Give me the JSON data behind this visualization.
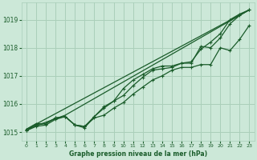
{
  "xlabel": "Graphe pression niveau de la mer (hPa)",
  "background_color": "#cce8d8",
  "grid_color": "#aacfba",
  "line_color": "#1a5c2a",
  "xlim": [
    -0.5,
    23.5
  ],
  "ylim": [
    1014.7,
    1019.6
  ],
  "yticks": [
    1015,
    1016,
    1017,
    1018,
    1019
  ],
  "xticks": [
    0,
    1,
    2,
    3,
    4,
    5,
    6,
    7,
    8,
    9,
    10,
    11,
    12,
    13,
    14,
    15,
    16,
    17,
    18,
    19,
    20,
    21,
    22,
    23
  ],
  "line1_x": [
    0,
    23
  ],
  "line1_y": [
    1015.1,
    1019.35
  ],
  "line2_x": [
    0,
    4,
    23
  ],
  "line2_y": [
    1015.1,
    1015.6,
    1019.35
  ],
  "line3_x": [
    0,
    1,
    2,
    3,
    4,
    5,
    6,
    7,
    8,
    9,
    10,
    11,
    12,
    13,
    14,
    15,
    16,
    17,
    18,
    19,
    20,
    21,
    22,
    23
  ],
  "line3_y": [
    1015.1,
    1015.3,
    1015.3,
    1015.5,
    1015.55,
    1015.25,
    1015.2,
    1015.5,
    1015.6,
    1015.85,
    1016.05,
    1016.35,
    1016.6,
    1016.85,
    1017.0,
    1017.2,
    1017.3,
    1017.3,
    1017.4,
    1017.4,
    1018.0,
    1017.9,
    1018.3,
    1018.8
  ],
  "line4_x": [
    0,
    1,
    2,
    3,
    4,
    5,
    6,
    7,
    8,
    9,
    10,
    11,
    12,
    13,
    14,
    15,
    16,
    17,
    18,
    19,
    20,
    21,
    22,
    23
  ],
  "line4_y": [
    1015.05,
    1015.2,
    1015.25,
    1015.45,
    1015.55,
    1015.25,
    1015.2,
    1015.55,
    1015.85,
    1016.1,
    1016.3,
    1016.65,
    1016.95,
    1017.2,
    1017.25,
    1017.3,
    1017.45,
    1017.5,
    1017.95,
    1018.2,
    1018.5,
    1019.0,
    1019.2,
    1019.35
  ],
  "line5_x": [
    0,
    1,
    2,
    3,
    4,
    5,
    6,
    7,
    8,
    9,
    10,
    11,
    12,
    13,
    14,
    15,
    16,
    17,
    18,
    19,
    20,
    21,
    22,
    23
  ],
  "line5_y": [
    1015.05,
    1015.25,
    1015.3,
    1015.5,
    1015.55,
    1015.25,
    1015.15,
    1015.55,
    1015.9,
    1016.1,
    1016.55,
    1016.85,
    1017.05,
    1017.25,
    1017.35,
    1017.35,
    1017.45,
    1017.45,
    1018.05,
    1018.0,
    1018.35,
    1018.85,
    1019.15,
    1019.35
  ]
}
